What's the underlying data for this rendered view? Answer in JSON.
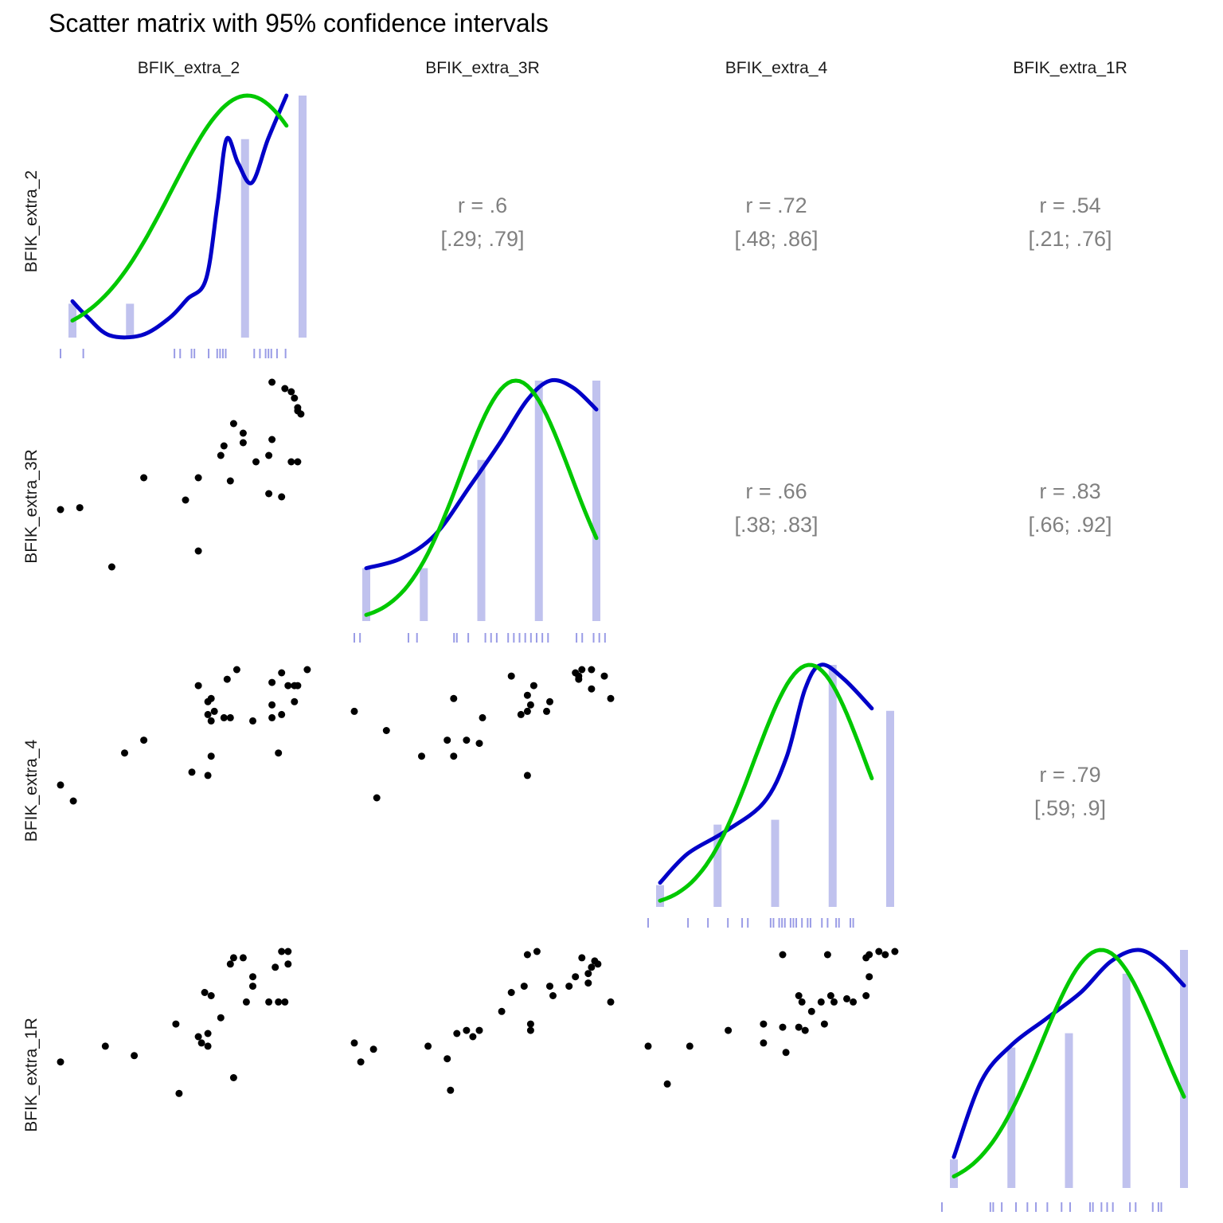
{
  "title": "Scatter matrix with 95% confidence intervals",
  "variables": [
    "BFIK_extra_2",
    "BFIK_extra_3R",
    "BFIK_extra_4",
    "BFIK_extra_1R"
  ],
  "colors": {
    "density": "#0000c8",
    "normal": "#00c800",
    "histogram": "#c0c2ee",
    "rug": "#9a9ce6",
    "points": "#000000",
    "correlation_text": "#808080"
  },
  "chart_data": {
    "type": "scatter",
    "title": "Scatter matrix with 95% confidence intervals",
    "variables": [
      "BFIK_extra_2",
      "BFIK_extra_3R",
      "BFIK_extra_4",
      "BFIK_extra_1R"
    ],
    "value_range": [
      1,
      5
    ],
    "grid": false,
    "correlations": [
      {
        "row": 0,
        "col": 1,
        "r": "r = .6",
        "ci": "[.29; .79]"
      },
      {
        "row": 0,
        "col": 2,
        "r": "r = .72",
        "ci": "[.48; .86]"
      },
      {
        "row": 0,
        "col": 3,
        "r": "r = .54",
        "ci": "[.21; .76]"
      },
      {
        "row": 1,
        "col": 2,
        "r": "r = .66",
        "ci": "[.38; .83]"
      },
      {
        "row": 1,
        "col": 3,
        "r": "r = .83",
        "ci": "[.66; .92]"
      },
      {
        "row": 2,
        "col": 3,
        "r": "r = .79",
        "ci": "[.59; .9]"
      }
    ],
    "histograms": [
      {
        "categories": [
          1,
          2,
          3,
          4,
          5
        ],
        "heights": [
          0.14,
          0.14,
          0.0,
          0.82,
          1.0
        ]
      },
      {
        "categories": [
          1,
          2,
          3,
          4,
          5
        ],
        "heights": [
          0.22,
          0.22,
          0.67,
          1.0,
          1.0
        ]
      },
      {
        "categories": [
          1,
          2,
          3,
          4,
          5
        ],
        "heights": [
          0.09,
          0.34,
          0.36,
          1.0,
          0.81
        ]
      },
      {
        "categories": [
          1,
          2,
          3,
          4,
          5
        ],
        "heights": [
          0.12,
          0.59,
          0.65,
          0.9,
          1.0
        ]
      }
    ],
    "kernel_density": [
      [
        [
          0.0,
          0.15
        ],
        [
          0.06,
          0.09
        ],
        [
          0.16,
          0.01
        ],
        [
          0.3,
          0.01
        ],
        [
          0.42,
          0.08
        ],
        [
          0.5,
          0.16
        ],
        [
          0.58,
          0.24
        ],
        [
          0.63,
          0.55
        ],
        [
          0.67,
          0.82
        ],
        [
          0.72,
          0.72
        ],
        [
          0.78,
          0.64
        ],
        [
          0.85,
          0.82
        ],
        [
          0.93,
          1.0
        ]
      ],
      [
        [
          0.0,
          0.22
        ],
        [
          0.15,
          0.26
        ],
        [
          0.3,
          0.36
        ],
        [
          0.45,
          0.56
        ],
        [
          0.58,
          0.74
        ],
        [
          0.7,
          0.92
        ],
        [
          0.8,
          1.0
        ],
        [
          0.9,
          0.97
        ],
        [
          1.0,
          0.88
        ]
      ],
      [
        [
          0.0,
          0.1
        ],
        [
          0.12,
          0.22
        ],
        [
          0.28,
          0.31
        ],
        [
          0.45,
          0.43
        ],
        [
          0.55,
          0.62
        ],
        [
          0.63,
          0.9
        ],
        [
          0.7,
          1.0
        ],
        [
          0.8,
          0.94
        ],
        [
          0.92,
          0.82
        ]
      ],
      [
        [
          0.0,
          0.13
        ],
        [
          0.12,
          0.45
        ],
        [
          0.25,
          0.6
        ],
        [
          0.4,
          0.71
        ],
        [
          0.55,
          0.82
        ],
        [
          0.68,
          0.95
        ],
        [
          0.8,
          1.0
        ],
        [
          0.9,
          0.95
        ],
        [
          1.0,
          0.85
        ]
      ]
    ],
    "normal_curves": [
      {
        "mean_frac": 0.76,
        "sd_frac": 0.33,
        "start_frac": 0.0,
        "end_frac": 0.93
      },
      {
        "mean_frac": 0.65,
        "sd_frac": 0.24,
        "start_frac": 0.0,
        "end_frac": 1.0
      },
      {
        "mean_frac": 0.65,
        "sd_frac": 0.24,
        "start_frac": 0.0,
        "end_frac": 0.92
      },
      {
        "mean_frac": 0.64,
        "sd_frac": 0.26,
        "start_frac": 0.0,
        "end_frac": 1.0
      }
    ],
    "rugs": [
      [
        1.0,
        1.4,
        3.0,
        3.1,
        3.3,
        3.35,
        3.6,
        3.75,
        3.8,
        3.85,
        3.9,
        4.4,
        4.5,
        4.6,
        4.65,
        4.7,
        4.8,
        4.95
      ],
      [
        1.0,
        1.1,
        1.95,
        2.1,
        2.75,
        2.8,
        3.0,
        3.3,
        3.4,
        3.5,
        3.7,
        3.8,
        3.9,
        4.0,
        4.1,
        4.2,
        4.3,
        4.4,
        4.9,
        5.0,
        5.2,
        5.3,
        5.4
      ],
      [
        1.0,
        1.7,
        2.05,
        2.4,
        2.65,
        2.75,
        3.15,
        3.2,
        3.3,
        3.35,
        3.4,
        3.5,
        3.55,
        3.6,
        3.7,
        3.8,
        3.85,
        4.05,
        4.15,
        4.3,
        4.35,
        4.55,
        4.6
      ],
      [
        1.0,
        1.85,
        1.9,
        2.05,
        2.3,
        2.5,
        2.65,
        2.85,
        3.1,
        3.25,
        3.6,
        3.65,
        3.8,
        3.9,
        4.0,
        4.3,
        4.4,
        4.7,
        4.8,
        4.85
      ]
    ],
    "scatter_panels": [
      {
        "row": 1,
        "col": 0,
        "points": [
          [
            1.0,
            3.0
          ],
          [
            1.3,
            3.03
          ],
          [
            4.3,
            5.0
          ],
          [
            4.5,
            4.9
          ],
          [
            4.6,
            4.85
          ],
          [
            4.65,
            4.75
          ],
          [
            4.7,
            4.6
          ],
          [
            4.7,
            4.55
          ],
          [
            4.75,
            4.5
          ],
          [
            3.7,
            4.35
          ],
          [
            3.85,
            4.2
          ],
          [
            3.55,
            4.0
          ],
          [
            3.85,
            4.05
          ],
          [
            4.3,
            4.1
          ],
          [
            4.25,
            3.85
          ],
          [
            3.5,
            3.85
          ],
          [
            4.05,
            3.75
          ],
          [
            4.6,
            3.75
          ],
          [
            4.7,
            3.75
          ],
          [
            2.3,
            3.5
          ],
          [
            3.15,
            3.5
          ],
          [
            3.65,
            3.45
          ],
          [
            4.25,
            3.25
          ],
          [
            4.45,
            3.2
          ],
          [
            2.95,
            3.15
          ],
          [
            3.15,
            2.35
          ],
          [
            1.8,
            2.1
          ]
        ]
      },
      {
        "row": 2,
        "col": 0,
        "points": [
          [
            3.75,
            4.95
          ],
          [
            4.85,
            4.95
          ],
          [
            4.45,
            4.9
          ],
          [
            3.6,
            4.8
          ],
          [
            4.3,
            4.75
          ],
          [
            4.55,
            4.7
          ],
          [
            4.65,
            4.7
          ],
          [
            4.7,
            4.7
          ],
          [
            3.15,
            4.7
          ],
          [
            3.35,
            4.5
          ],
          [
            3.3,
            4.45
          ],
          [
            4.65,
            4.45
          ],
          [
            4.3,
            4.4
          ],
          [
            3.4,
            4.3
          ],
          [
            3.3,
            4.25
          ],
          [
            4.45,
            4.25
          ],
          [
            3.55,
            4.2
          ],
          [
            3.65,
            4.2
          ],
          [
            4.3,
            4.2
          ],
          [
            4.0,
            4.15
          ],
          [
            3.35,
            4.15
          ],
          [
            2.3,
            3.85
          ],
          [
            2.0,
            3.65
          ],
          [
            4.4,
            3.65
          ],
          [
            3.35,
            3.6
          ],
          [
            3.05,
            3.35
          ],
          [
            3.3,
            3.3
          ],
          [
            1.0,
            3.15
          ],
          [
            1.2,
            2.9
          ]
        ]
      },
      {
        "row": 2,
        "col": 1,
        "points": [
          [
            4.55,
            4.95
          ],
          [
            4.7,
            4.95
          ],
          [
            4.45,
            4.9
          ],
          [
            4.5,
            4.85
          ],
          [
            3.45,
            4.85
          ],
          [
            4.5,
            4.8
          ],
          [
            4.9,
            4.85
          ],
          [
            3.8,
            4.7
          ],
          [
            4.7,
            4.65
          ],
          [
            3.7,
            4.55
          ],
          [
            4.05,
            4.45
          ],
          [
            2.55,
            4.5
          ],
          [
            5.0,
            4.5
          ],
          [
            3.75,
            4.4
          ],
          [
            3.7,
            4.3
          ],
          [
            4.0,
            4.3
          ],
          [
            1.0,
            4.3
          ],
          [
            3.6,
            4.25
          ],
          [
            3.0,
            4.2
          ],
          [
            1.5,
            4.0
          ],
          [
            2.45,
            3.85
          ],
          [
            2.75,
            3.85
          ],
          [
            2.95,
            3.8
          ],
          [
            2.05,
            3.6
          ],
          [
            2.55,
            3.6
          ],
          [
            3.7,
            3.3
          ],
          [
            1.35,
            2.95
          ]
        ]
      },
      {
        "row": 3,
        "col": 0,
        "points": [
          [
            4.45,
            5.0
          ],
          [
            4.55,
            5.0
          ],
          [
            3.7,
            4.9
          ],
          [
            3.85,
            4.9
          ],
          [
            4.55,
            4.8
          ],
          [
            3.65,
            4.8
          ],
          [
            4.35,
            4.75
          ],
          [
            4.0,
            4.6
          ],
          [
            4.0,
            4.45
          ],
          [
            3.25,
            4.35
          ],
          [
            3.35,
            4.3
          ],
          [
            4.4,
            4.2
          ],
          [
            4.5,
            4.2
          ],
          [
            4.25,
            4.2
          ],
          [
            3.9,
            4.2
          ],
          [
            3.5,
            3.95
          ],
          [
            2.8,
            3.85
          ],
          [
            3.3,
            3.7
          ],
          [
            3.15,
            3.65
          ],
          [
            3.2,
            3.55
          ],
          [
            3.3,
            3.5
          ],
          [
            1.7,
            3.5
          ],
          [
            2.15,
            3.35
          ],
          [
            3.7,
            3.0
          ],
          [
            1.0,
            3.25
          ],
          [
            2.85,
            2.75
          ]
        ]
      },
      {
        "row": 3,
        "col": 1,
        "points": [
          [
            3.85,
            5.0
          ],
          [
            3.7,
            4.95
          ],
          [
            4.55,
            4.9
          ],
          [
            4.75,
            4.85
          ],
          [
            4.8,
            4.8
          ],
          [
            4.7,
            4.75
          ],
          [
            4.65,
            4.65
          ],
          [
            4.45,
            4.6
          ],
          [
            3.65,
            4.45
          ],
          [
            4.05,
            4.45
          ],
          [
            4.35,
            4.45
          ],
          [
            4.65,
            4.5
          ],
          [
            3.45,
            4.35
          ],
          [
            4.1,
            4.3
          ],
          [
            5.0,
            4.2
          ],
          [
            3.3,
            4.05
          ],
          [
            3.75,
            3.85
          ],
          [
            2.95,
            3.75
          ],
          [
            2.75,
            3.75
          ],
          [
            2.6,
            3.7
          ],
          [
            3.75,
            3.75
          ],
          [
            2.85,
            3.65
          ],
          [
            1.0,
            3.55
          ],
          [
            2.15,
            3.5
          ],
          [
            1.3,
            3.45
          ],
          [
            2.45,
            3.3
          ],
          [
            1.1,
            3.25
          ],
          [
            2.5,
            2.8
          ]
        ]
      },
      {
        "row": 3,
        "col": 2,
        "points": [
          [
            1.0,
            3.5
          ],
          [
            1.65,
            3.5
          ],
          [
            2.25,
            3.75
          ],
          [
            2.8,
            3.85
          ],
          [
            3.1,
            3.8
          ],
          [
            2.8,
            3.55
          ],
          [
            3.15,
            3.4
          ],
          [
            3.35,
            3.8
          ],
          [
            3.45,
            3.75
          ],
          [
            3.55,
            4.05
          ],
          [
            3.75,
            3.85
          ],
          [
            3.7,
            4.2
          ],
          [
            3.85,
            4.3
          ],
          [
            3.35,
            4.3
          ],
          [
            3.4,
            4.2
          ],
          [
            4.1,
            4.25
          ],
          [
            4.2,
            4.2
          ],
          [
            4.4,
            4.3
          ],
          [
            3.9,
            4.2
          ],
          [
            4.45,
            4.6
          ],
          [
            4.4,
            4.9
          ],
          [
            4.7,
            4.95
          ],
          [
            4.6,
            5.0
          ],
          [
            4.85,
            5.0
          ],
          [
            4.45,
            4.95
          ],
          [
            3.8,
            4.95
          ],
          [
            3.1,
            4.95
          ],
          [
            1.3,
            2.9
          ]
        ]
      }
    ]
  }
}
